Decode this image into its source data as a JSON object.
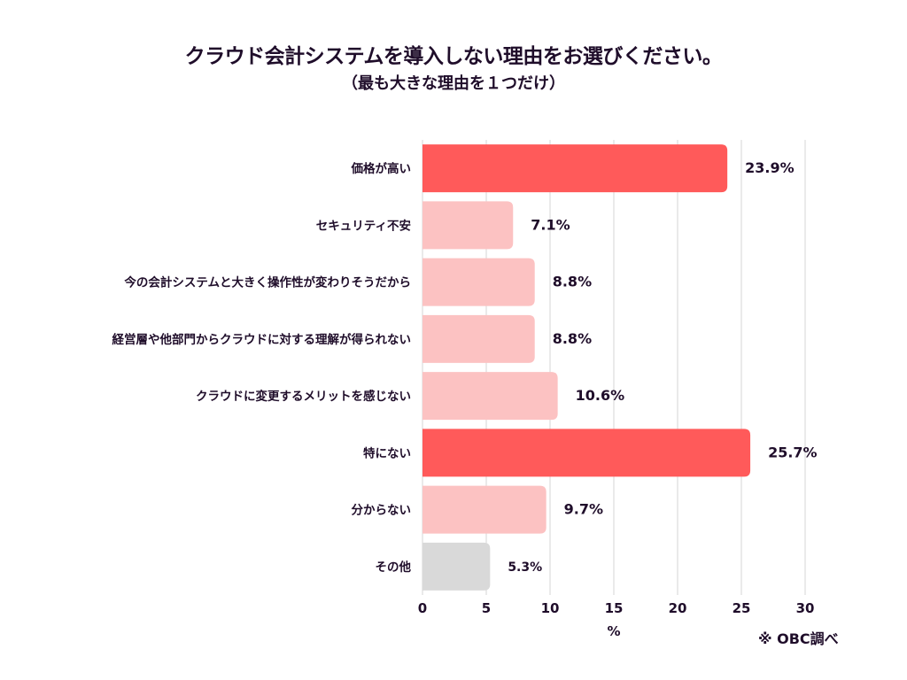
{
  "chart_data": {
    "type": "bar",
    "orientation": "horizontal",
    "title": "クラウド会計システムを導入しない理由をお選びください。",
    "subtitle": "（最も大きな理由を１つだけ）",
    "xlabel": "%",
    "ylabel": "",
    "xlim": [
      0,
      30
    ],
    "xticks": [
      0,
      5,
      10,
      15,
      20,
      25,
      30
    ],
    "grid": true,
    "categories": [
      "価格が高い",
      "セキュリティ不安",
      "今の会計システムと大きく操作性が変わりそうだから",
      "経営層や他部門からクラウドに対する理解が得られない",
      "クラウドに変更するメリットを感じない",
      "特にない",
      "分からない",
      "その他"
    ],
    "values": [
      23.9,
      7.1,
      8.8,
      8.8,
      10.6,
      25.7,
      9.7,
      5.3
    ],
    "value_labels": [
      "23.9%",
      "7.1%",
      "8.8%",
      "8.8%",
      "10.6%",
      "25.7%",
      "9.7%",
      "5.3%"
    ],
    "bar_colors": [
      "#ff5a5a",
      "#fcc2c2",
      "#fcc2c2",
      "#fcc2c2",
      "#fcc2c2",
      "#ff5a5a",
      "#fcc2c2",
      "#d9d9d9"
    ],
    "source_note": "※ OBC調べ"
  },
  "colors": {
    "highlight": "#ff5a5a",
    "normal": "#fcc2c2",
    "other": "#d9d9d9",
    "grid": "#d6d6d6",
    "text": "#1f0d2a"
  }
}
